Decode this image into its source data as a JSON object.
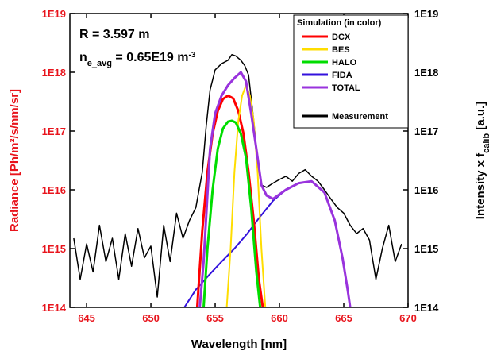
{
  "chart_data": {
    "type": "line",
    "ylabel_left": "Radiance [Ph/m²/s/nm/sr]",
    "ylabel_right_main": "Intensity x f",
    "ylabel_right_sub": "calib",
    "ylabel_right_end": " [a.u.]",
    "xlabel": "Wavelength [nm]",
    "x_ticks": [
      "645",
      "650",
      "655",
      "660",
      "665",
      "670"
    ],
    "y_ticks": [
      "1E14",
      "1E15",
      "1E16",
      "1E17",
      "1E18",
      "1E19"
    ],
    "xlim": [
      643.7,
      670.0
    ],
    "ylim": [
      100000000000000.0,
      1e+19
    ],
    "y_scale": "log",
    "annotations": {
      "r_label": "R = 3.597 m",
      "ne_main": "n",
      "ne_sub": "e_avg",
      "ne_value": " = 0.65E19 m",
      "ne_sup": "-3"
    },
    "legend": {
      "title": "Simulation (in color)",
      "placement": "top-right",
      "entries": [
        {
          "label": "DCX",
          "color": "#ff0000"
        },
        {
          "label": "BES",
          "color": "#ffdd00"
        },
        {
          "label": "HALO",
          "color": "#00dd00"
        },
        {
          "label": "FIDA",
          "color": "#3311dd"
        },
        {
          "label": "TOTAL",
          "color": "#9933dd"
        },
        {
          "label": "Measurement",
          "color": "#000000"
        }
      ]
    },
    "series": [
      {
        "name": "DCX",
        "color": "#ff0000",
        "width": 3,
        "x": [
          653.6,
          654.0,
          654.4,
          654.8,
          655.2,
          655.6,
          656.0,
          656.4,
          656.8,
          657.2,
          657.6,
          658.0,
          658.4,
          658.7
        ],
        "y": [
          100000000000000.0,
          2000000000000000.0,
          2e+16,
          9e+16,
          2.2e+17,
          3.5e+17,
          4e+17,
          3.6e+17,
          2.2e+17,
          9e+16,
          2e+16,
          3000000000000000.0,
          300000000000000.0,
          100000000000000.0
        ]
      },
      {
        "name": "BES",
        "color": "#ffdd00",
        "width": 2,
        "x": [
          655.9,
          656.2,
          656.5,
          656.8,
          657.1,
          657.4,
          657.7,
          658.0,
          658.3,
          658.6,
          658.9
        ],
        "y": [
          100000000000000.0,
          1000000000000000.0,
          2e+16,
          1.5e+17,
          4e+17,
          6e+17,
          4e+17,
          1.5e+17,
          2e+16,
          1000000000000000.0,
          100000000000000.0
        ]
      },
      {
        "name": "HALO",
        "color": "#00dd00",
        "width": 3,
        "x": [
          654.1,
          654.4,
          654.8,
          655.2,
          655.6,
          656.0,
          656.3,
          656.6,
          657.0,
          657.4,
          657.8,
          658.2,
          658.5
        ],
        "y": [
          100000000000000.0,
          1000000000000000.0,
          1e+16,
          5e+16,
          1.1e+17,
          1.45e+17,
          1.5e+17,
          1.4e+17,
          9e+16,
          3.5e+16,
          5000000000000000.0,
          400000000000000.0,
          100000000000000.0
        ]
      },
      {
        "name": "FIDA",
        "color": "#3311dd",
        "width": 2,
        "x": [
          652.6,
          653.5,
          654.5,
          655.5,
          656.5,
          657.5,
          658.5,
          659.5,
          660.5,
          661.5,
          662.5,
          663.5,
          664.3,
          664.9,
          665.3,
          665.5
        ],
        "y": [
          100000000000000.0,
          200000000000000.0,
          350000000000000.0,
          600000000000000.0,
          1000000000000000.0,
          1800000000000000.0,
          3500000000000000.0,
          6500000000000000.0,
          1e+16,
          1.3e+16,
          1.4e+16,
          9000000000000000.0,
          3000000000000000.0,
          700000000000000.0,
          200000000000000.0,
          100000000000000.0
        ]
      },
      {
        "name": "TOTAL",
        "color": "#9933dd",
        "width": 3,
        "x": [
          653.8,
          654.1,
          654.6,
          655.0,
          655.5,
          656.0,
          656.5,
          657.0,
          657.4,
          657.8,
          658.2,
          658.6,
          659.0,
          659.5,
          660.5,
          661.5,
          662.5,
          663.5,
          664.3,
          664.9,
          665.3,
          665.5
        ],
        "y": [
          100000000000000.0,
          600000000000000.0,
          5e+16,
          2e+17,
          4e+17,
          6e+17,
          8e+17,
          1e+18,
          7e+17,
          2e+17,
          5e+16,
          1.2e+16,
          8000000000000000.0,
          7000000000000000.0,
          1e+16,
          1.3e+16,
          1.4e+16,
          9000000000000000.0,
          3000000000000000.0,
          700000000000000.0,
          200000000000000.0,
          100000000000000.0
        ]
      },
      {
        "name": "Measurement",
        "color": "#000000",
        "width": 1.5,
        "x": [
          644.0,
          644.5,
          645.0,
          645.5,
          646.0,
          646.5,
          647.0,
          647.5,
          648.0,
          648.5,
          649.0,
          649.5,
          650.0,
          650.5,
          651.0,
          651.5,
          652.0,
          652.5,
          653.0,
          653.5,
          654.0,
          654.3,
          654.6,
          655.0,
          655.5,
          656.0,
          656.3,
          656.6,
          657.0,
          657.3,
          657.6,
          658.0,
          658.3,
          658.6,
          659.0,
          659.5,
          660.0,
          660.5,
          661.0,
          661.5,
          662.0,
          662.5,
          663.0,
          663.5,
          664.0,
          664.5,
          665.0,
          665.5,
          666.0,
          666.5,
          667.0,
          667.5,
          668.0,
          668.5,
          669.0,
          669.5
        ],
        "y": [
          1500000000000000.0,
          300000000000000.0,
          1200000000000000.0,
          400000000000000.0,
          2500000000000000.0,
          600000000000000.0,
          1500000000000000.0,
          300000000000000.0,
          1800000000000000.0,
          500000000000000.0,
          2200000000000000.0,
          700000000000000.0,
          1100000000000000.0,
          150000000000000.0,
          2500000000000000.0,
          600000000000000.0,
          4000000000000000.0,
          1500000000000000.0,
          3000000000000000.0,
          5000000000000000.0,
          2e+16,
          1.2e+17,
          5e+17,
          1.1e+18,
          1.4e+18,
          1.6e+18,
          2e+18,
          1.9e+18,
          1.6e+18,
          1.3e+18,
          9e+17,
          1.5e+17,
          3e+16,
          1.2e+16,
          1.1e+16,
          1.3e+16,
          1.5e+16,
          1.7e+16,
          1.4e+16,
          1.9e+16,
          2.2e+16,
          1.7e+16,
          1.4e+16,
          1e+16,
          7000000000000000.0,
          5000000000000000.0,
          4000000000000000.0,
          2500000000000000.0,
          1800000000000000.0,
          2200000000000000.0,
          1400000000000000.0,
          300000000000000.0,
          1000000000000000.0,
          2500000000000000.0,
          600000000000000.0,
          1200000000000000.0
        ]
      }
    ]
  }
}
